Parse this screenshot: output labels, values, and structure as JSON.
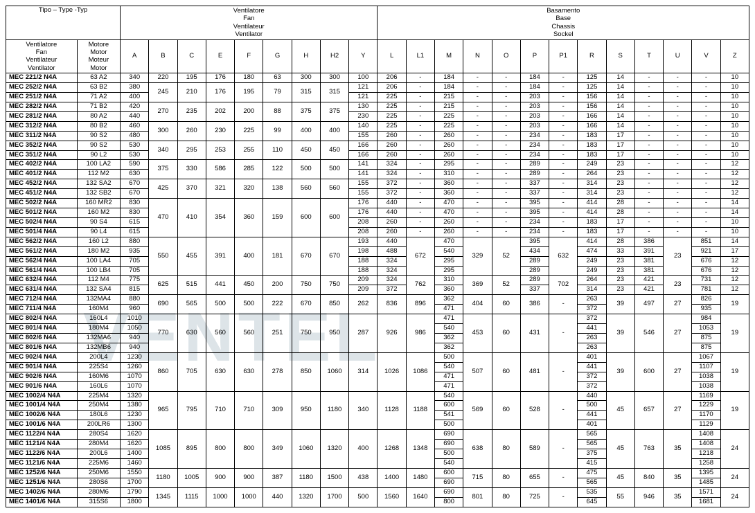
{
  "header": {
    "type_label": "Tipo – Type -Typ",
    "fan_group": "Ventilatore\nFan\nVentilateur\nVentilator",
    "base_group": "Basamento\nBase\nChassis\nSockel",
    "fan_col": "Ventilatore\nFan\nVentilateur\nVentilator",
    "motor_col": "Motore\nMotor\nMoteur\nMotor",
    "cols_fan": [
      "A",
      "B",
      "C",
      "E",
      "F",
      "G",
      "H",
      "H2",
      "Y"
    ],
    "cols_base": [
      "L",
      "L1",
      "M",
      "N",
      "O",
      "P",
      "P1",
      "R",
      "S",
      "T",
      "U",
      "V",
      "Z"
    ]
  },
  "groups": [
    {
      "rows": [
        [
          "MEC  221/2 N4A",
          "63 A2",
          "340"
        ]
      ],
      "fan": [
        "220",
        "195",
        "176",
        "180",
        "63",
        "300",
        "300",
        "100"
      ],
      "per_row_after": [
        [
          "206",
          "-",
          "184",
          "-",
          "-",
          "184",
          "-",
          "125",
          "14",
          "-",
          "-",
          "-",
          "10"
        ]
      ],
      "base_shared": null
    },
    {
      "rows": [
        [
          "MEC  252/2 N4A",
          "63 B2",
          "380"
        ],
        [
          "MEC  251/2 N4A",
          "71 A2",
          "400"
        ]
      ],
      "fan": [
        "245",
        "210",
        "176",
        "195",
        "79",
        "315",
        "315"
      ],
      "per_row_after": [
        [
          "121",
          "206",
          "-",
          "184",
          "-",
          "-",
          "184",
          "-",
          "125",
          "14",
          "-",
          "-",
          "-",
          "10"
        ],
        [
          "121",
          "225",
          "-",
          "215",
          "-",
          "-",
          "203",
          "-",
          "156",
          "14",
          "-",
          "-",
          "-",
          "10"
        ]
      ]
    },
    {
      "rows": [
        [
          "MEC  282/2 N4A",
          "71 B2",
          "420"
        ],
        [
          "MEC  281/2 N4A",
          "80 A2",
          "440"
        ]
      ],
      "fan": [
        "270",
        "235",
        "202",
        "200",
        "88",
        "375",
        "375"
      ],
      "per_row_after": [
        [
          "130",
          "225",
          "-",
          "215",
          "-",
          "-",
          "203",
          "-",
          "156",
          "14",
          "-",
          "-",
          "-",
          "10"
        ],
        [
          "230",
          "225",
          "-",
          "225",
          "-",
          "-",
          "203",
          "-",
          "166",
          "14",
          "-",
          "-",
          "-",
          "10"
        ]
      ]
    },
    {
      "rows": [
        [
          "MEC  312/2 N4A",
          "80 B2",
          "460"
        ],
        [
          "MEC  311/2 N4A",
          "90 S2",
          "480"
        ]
      ],
      "fan": [
        "300",
        "260",
        "230",
        "225",
        "99",
        "400",
        "400"
      ],
      "per_row_after": [
        [
          "140",
          "225",
          "-",
          "225",
          "-",
          "-",
          "203",
          "-",
          "166",
          "14",
          "-",
          "-",
          "-",
          "10"
        ],
        [
          "155",
          "260",
          "-",
          "260",
          "-",
          "-",
          "234",
          "-",
          "183",
          "17",
          "-",
          "-",
          "-",
          "10"
        ]
      ]
    },
    {
      "rows": [
        [
          "MEC  352/2 N4A",
          "90 S2",
          "530"
        ],
        [
          "MEC  351/2 N4A",
          "90 L2",
          "530"
        ]
      ],
      "fan": [
        "340",
        "295",
        "253",
        "255",
        "110",
        "450",
        "450"
      ],
      "per_row_after": [
        [
          "166",
          "260",
          "-",
          "260",
          "-",
          "-",
          "234",
          "-",
          "183",
          "17",
          "-",
          "-",
          "-",
          "10"
        ],
        [
          "166",
          "260",
          "-",
          "260",
          "-",
          "-",
          "234",
          "-",
          "183",
          "17",
          "-",
          "-",
          "-",
          "10"
        ]
      ]
    },
    {
      "rows": [
        [
          "MEC  402/2 N4A",
          "100 LA2",
          "590"
        ],
        [
          "MEC  401/2 N4A",
          "112 M2",
          "630"
        ]
      ],
      "fan": [
        "375",
        "330",
        "586",
        "285",
        "122",
        "500",
        "500"
      ],
      "per_row_after": [
        [
          "141",
          "324",
          "-",
          "295",
          "-",
          "-",
          "289",
          "-",
          "249",
          "23",
          "-",
          "-",
          "-",
          "12"
        ],
        [
          "141",
          "324",
          "-",
          "310",
          "-",
          "-",
          "289",
          "-",
          "264",
          "23",
          "-",
          "-",
          "-",
          "12"
        ]
      ]
    },
    {
      "rows": [
        [
          "MEC  452/2 N4A",
          "132 SA2",
          "670"
        ],
        [
          "MEC  451/2 N4A",
          "132 SB2",
          "670"
        ]
      ],
      "fan": [
        "425",
        "370",
        "321",
        "320",
        "138",
        "560",
        "560"
      ],
      "per_row_after": [
        [
          "155",
          "372",
          "-",
          "360",
          "-",
          "-",
          "337",
          "-",
          "314",
          "23",
          "-",
          "-",
          "-",
          "12"
        ],
        [
          "155",
          "372",
          "-",
          "360",
          "-",
          "-",
          "337",
          "-",
          "314",
          "23",
          "-",
          "-",
          "-",
          "12"
        ]
      ]
    },
    {
      "rows": [
        [
          "MEC  502/2 N4A",
          "160 MR2",
          "830"
        ],
        [
          "MEC  501/2 N4A",
          "160 M2",
          "830"
        ],
        [
          "MEC  502/4 N4A",
          "90 S4",
          "615"
        ],
        [
          "MEC  501/4 N4A",
          "90 L4",
          "615"
        ]
      ],
      "fan": [
        "470",
        "410",
        "354",
        "360",
        "159",
        "600",
        "600"
      ],
      "per_row_after": [
        [
          "176",
          "440",
          "-",
          "470",
          "-",
          "-",
          "395",
          "-",
          "414",
          "28",
          "-",
          "-",
          "-",
          "14"
        ],
        [
          "176",
          "440",
          "-",
          "470",
          "-",
          "-",
          "395",
          "-",
          "414",
          "28",
          "-",
          "-",
          "-",
          "14"
        ],
        [
          "208",
          "260",
          "-",
          "260",
          "-",
          "-",
          "234",
          "-",
          "183",
          "17",
          "-",
          "-",
          "-",
          "10"
        ],
        [
          "208",
          "260",
          "-",
          "260",
          "-",
          "-",
          "234",
          "-",
          "183",
          "17",
          "-",
          "-",
          "-",
          "10"
        ]
      ]
    },
    {
      "rows": [
        [
          "MEC  562/2 N4A",
          "160 L2",
          "880"
        ],
        [
          "MEC  561/2 N4A",
          "180 M2",
          "935"
        ],
        [
          "MEC  562/4 N4A",
          "100 LA4",
          "705"
        ],
        [
          "MEC  561/4 N4A",
          "100 LB4",
          "705"
        ]
      ],
      "fan": [
        "550",
        "455",
        "391",
        "400",
        "181",
        "670",
        "670"
      ],
      "per_row_after": [
        [
          "193",
          "440"
        ],
        [
          "198",
          "488"
        ],
        [
          "188",
          "324"
        ],
        [
          "188",
          "324"
        ]
      ],
      "shared_mid": [
        "672"
      ],
      "per_row_m": [
        "470",
        "540",
        "295",
        "295"
      ],
      "shared_no": [
        "329",
        "52"
      ],
      "per_row_p": [
        "395",
        "434",
        "289",
        "289"
      ],
      "shared_p1": [
        "632"
      ],
      "per_row_tail": [
        [
          "414",
          "28",
          "386",
          "",
          "851",
          "14"
        ],
        [
          "474",
          "33",
          "391",
          "",
          "921",
          "17"
        ],
        [
          "249",
          "23",
          "381",
          "",
          "676",
          "12"
        ],
        [
          "249",
          "23",
          "381",
          "",
          "676",
          "12"
        ]
      ],
      "shared_u": [
        "23"
      ]
    },
    {
      "rows": [
        [
          "MEC  632/4 N4A",
          "112 M4",
          "775"
        ],
        [
          "MEC  631/4 N4A",
          "132 SA4",
          "815"
        ]
      ],
      "fan": [
        "625",
        "515",
        "441",
        "450",
        "200",
        "750",
        "750"
      ],
      "per_row_after": [
        [
          "209",
          "324"
        ],
        [
          "209",
          "372"
        ]
      ],
      "shared_mid": [
        "762"
      ],
      "per_row_m": [
        "310",
        "360"
      ],
      "shared_no": [
        "369",
        "52"
      ],
      "per_row_p": [
        "289",
        "337"
      ],
      "shared_p1": [
        "702"
      ],
      "per_row_tail": [
        [
          "264",
          "23",
          "421",
          "",
          "731",
          "12"
        ],
        [
          "314",
          "23",
          "421",
          "",
          "781",
          "12"
        ]
      ],
      "shared_u": [
        "23"
      ]
    },
    {
      "rows": [
        [
          "MEC  712/4 N4A",
          "132MA4",
          "880"
        ],
        [
          "MEC  711/4 N4A",
          "160M4",
          "960"
        ]
      ],
      "fan": [
        "690",
        "565",
        "500",
        "500",
        "222",
        "670",
        "850",
        "262"
      ],
      "shared_l": [
        "836",
        "896"
      ],
      "per_row_m": [
        "362",
        "471"
      ],
      "shared_no": [
        "404",
        "60",
        "386",
        "-"
      ],
      "per_row_tail": [
        [
          "263",
          "",
          "",
          "",
          "826",
          ""
        ],
        [
          "372",
          "",
          "",
          "",
          "935",
          ""
        ]
      ],
      "shared_rstuz": [
        "39",
        "497",
        "27",
        "19"
      ]
    },
    {
      "rows": [
        [
          "MEC  802/4 N4A",
          "160L4",
          "1010"
        ],
        [
          "MEC  801/4 N4A",
          "180M4",
          "1050"
        ],
        [
          "MEC  802/6 N4A",
          "132MA6",
          "940"
        ],
        [
          "MEC  801/6 N4A",
          "132MB6",
          "940"
        ]
      ],
      "fan": [
        "770",
        "630",
        "560",
        "560",
        "251",
        "750",
        "950",
        "287"
      ],
      "shared_l": [
        "926",
        "986"
      ],
      "per_row_m": [
        "471",
        "540",
        "362",
        "362"
      ],
      "shared_no": [
        "453",
        "60",
        "431",
        "-"
      ],
      "per_row_tail": [
        [
          "372",
          "",
          "",
          "",
          "984",
          ""
        ],
        [
          "441",
          "",
          "",
          "",
          "1053",
          ""
        ],
        [
          "263",
          "",
          "",
          "",
          "875",
          ""
        ],
        [
          "263",
          "",
          "",
          "",
          "875",
          ""
        ]
      ],
      "shared_rstuz": [
        "39",
        "546",
        "27",
        "19"
      ]
    },
    {
      "rows": [
        [
          "MEC  902/4 N4A",
          "200L4",
          "1230"
        ],
        [
          "MEC  901/4 N4A",
          "225S4",
          "1260"
        ],
        [
          "MEC  902/6 N4A",
          "160M6",
          "1070"
        ],
        [
          "MEC  901/6 N4A",
          "160L6",
          "1070"
        ]
      ],
      "fan": [
        "860",
        "705",
        "630",
        "630",
        "278",
        "850",
        "1060",
        "314"
      ],
      "shared_l": [
        "1026",
        "1086"
      ],
      "per_row_m": [
        "500",
        "540",
        "471",
        "471"
      ],
      "shared_no": [
        "507",
        "60",
        "481",
        "-"
      ],
      "per_row_tail": [
        [
          "401",
          "",
          "",
          "",
          "1067",
          ""
        ],
        [
          "441",
          "",
          "",
          "",
          "1107",
          ""
        ],
        [
          "372",
          "",
          "",
          "",
          "1038",
          ""
        ],
        [
          "372",
          "",
          "",
          "",
          "1038",
          ""
        ]
      ],
      "shared_rstuz": [
        "39",
        "600",
        "27",
        "19"
      ]
    },
    {
      "rows": [
        [
          "MEC 1002/4 N4A",
          "225M4",
          "1320"
        ],
        [
          "MEC 1001/4 N4A",
          "250M4",
          "1380"
        ],
        [
          "MEC 1002/6 N4A",
          "180L6",
          "1230"
        ],
        [
          "MEC 1001/6 N4A",
          "200LR6",
          "1300"
        ]
      ],
      "fan": [
        "965",
        "795",
        "710",
        "710",
        "309",
        "950",
        "1180",
        "340"
      ],
      "shared_l": [
        "1128",
        "1188"
      ],
      "per_row_m": [
        "540",
        "600",
        "541",
        "500"
      ],
      "shared_no": [
        "569",
        "60",
        "528",
        "-"
      ],
      "per_row_tail": [
        [
          "440",
          "",
          "",
          "",
          "1169",
          ""
        ],
        [
          "500",
          "",
          "",
          "",
          "1229",
          ""
        ],
        [
          "441",
          "",
          "",
          "",
          "1170",
          ""
        ],
        [
          "401",
          "",
          "",
          "",
          "1129",
          ""
        ]
      ],
      "shared_rstuz": [
        "45",
        "657",
        "27",
        "19"
      ]
    },
    {
      "rows": [
        [
          "MEC 1122/4 N4A",
          "280S4",
          "1620"
        ],
        [
          "MEC 1121/4 N4A",
          "280M4",
          "1620"
        ],
        [
          "MEC 1122/6 N4A",
          "200L6",
          "1400"
        ],
        [
          "MEC 1121/6 N4A",
          "225M6",
          "1460"
        ]
      ],
      "fan": [
        "1085",
        "895",
        "800",
        "800",
        "349",
        "1060",
        "1320",
        "400"
      ],
      "shared_l": [
        "1268",
        "1348"
      ],
      "per_row_m": [
        "690",
        "690",
        "500",
        "540"
      ],
      "shared_no": [
        "638",
        "80",
        "589",
        "-"
      ],
      "per_row_tail": [
        [
          "565",
          "",
          "",
          "",
          "1408",
          ""
        ],
        [
          "565",
          "",
          "",
          "",
          "1408",
          ""
        ],
        [
          "375",
          "",
          "",
          "",
          "1218",
          ""
        ],
        [
          "415",
          "",
          "",
          "",
          "1258",
          ""
        ]
      ],
      "shared_rstuz": [
        "45",
        "763",
        "35",
        "24"
      ]
    },
    {
      "rows": [
        [
          "MEC 1252/6 N4A",
          "250M6",
          "1550"
        ],
        [
          "MEC 1251/6 N4A",
          "280S6",
          "1700"
        ]
      ],
      "fan": [
        "1180",
        "1005",
        "900",
        "900",
        "387",
        "1180",
        "1500",
        "438"
      ],
      "shared_l": [
        "1400",
        "1480"
      ],
      "per_row_m": [
        "600",
        "690"
      ],
      "shared_no": [
        "715",
        "80",
        "655",
        "-"
      ],
      "per_row_tail": [
        [
          "475",
          "",
          "",
          "",
          "1395",
          ""
        ],
        [
          "565",
          "",
          "",
          "",
          "1485",
          ""
        ]
      ],
      "shared_rstuz": [
        "45",
        "840",
        "35",
        "24"
      ]
    },
    {
      "rows": [
        [
          "MEC 1402/6 N4A",
          "280M6",
          "1790"
        ],
        [
          "MEC 1401/6 N4A",
          "315S6",
          "1800"
        ]
      ],
      "fan": [
        "1345",
        "1115",
        "1000",
        "1000",
        "440",
        "1320",
        "1700",
        "500"
      ],
      "shared_l": [
        "1560",
        "1640"
      ],
      "per_row_m": [
        "690",
        "800"
      ],
      "shared_no": [
        "801",
        "80",
        "725",
        "-"
      ],
      "per_row_tail": [
        [
          "535",
          "",
          "",
          "",
          "1571",
          ""
        ],
        [
          "645",
          "",
          "",
          "",
          "1681",
          ""
        ]
      ],
      "shared_rstuz": [
        "55",
        "946",
        "35",
        "24"
      ]
    }
  ]
}
